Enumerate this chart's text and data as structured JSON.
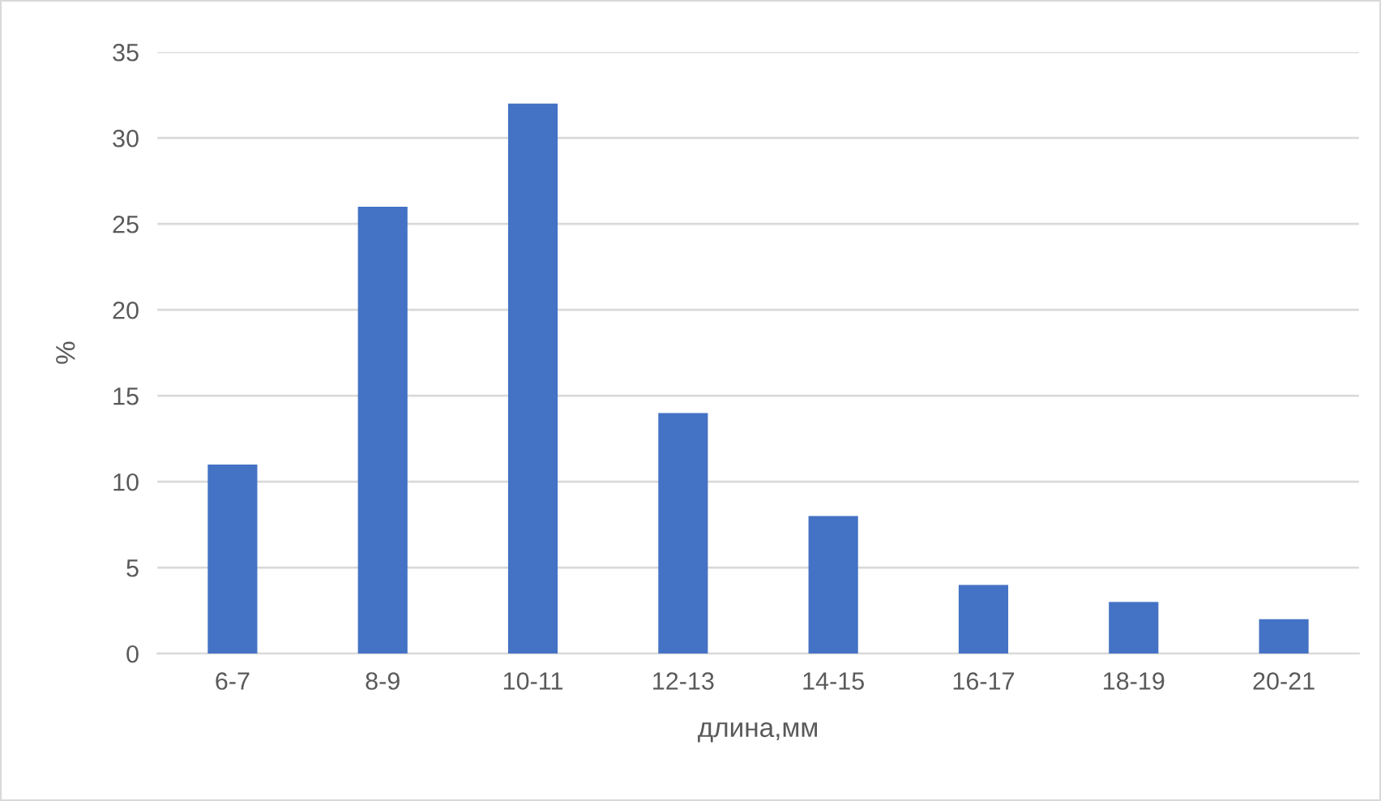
{
  "chart_data": {
    "type": "bar",
    "xlabel": "длина,мм",
    "ylabel": "%",
    "categories": [
      "6-7",
      "8-9",
      "10-11",
      "12-13",
      "14-15",
      "16-17",
      "18-19",
      "20-21"
    ],
    "values": [
      11,
      26,
      32,
      14,
      8,
      4,
      3,
      2
    ],
    "color": "#4472c4",
    "ylim": [
      0,
      35
    ],
    "yticks": [
      0,
      5,
      10,
      15,
      20,
      25,
      30,
      35
    ],
    "grid": "y",
    "legend": false
  }
}
